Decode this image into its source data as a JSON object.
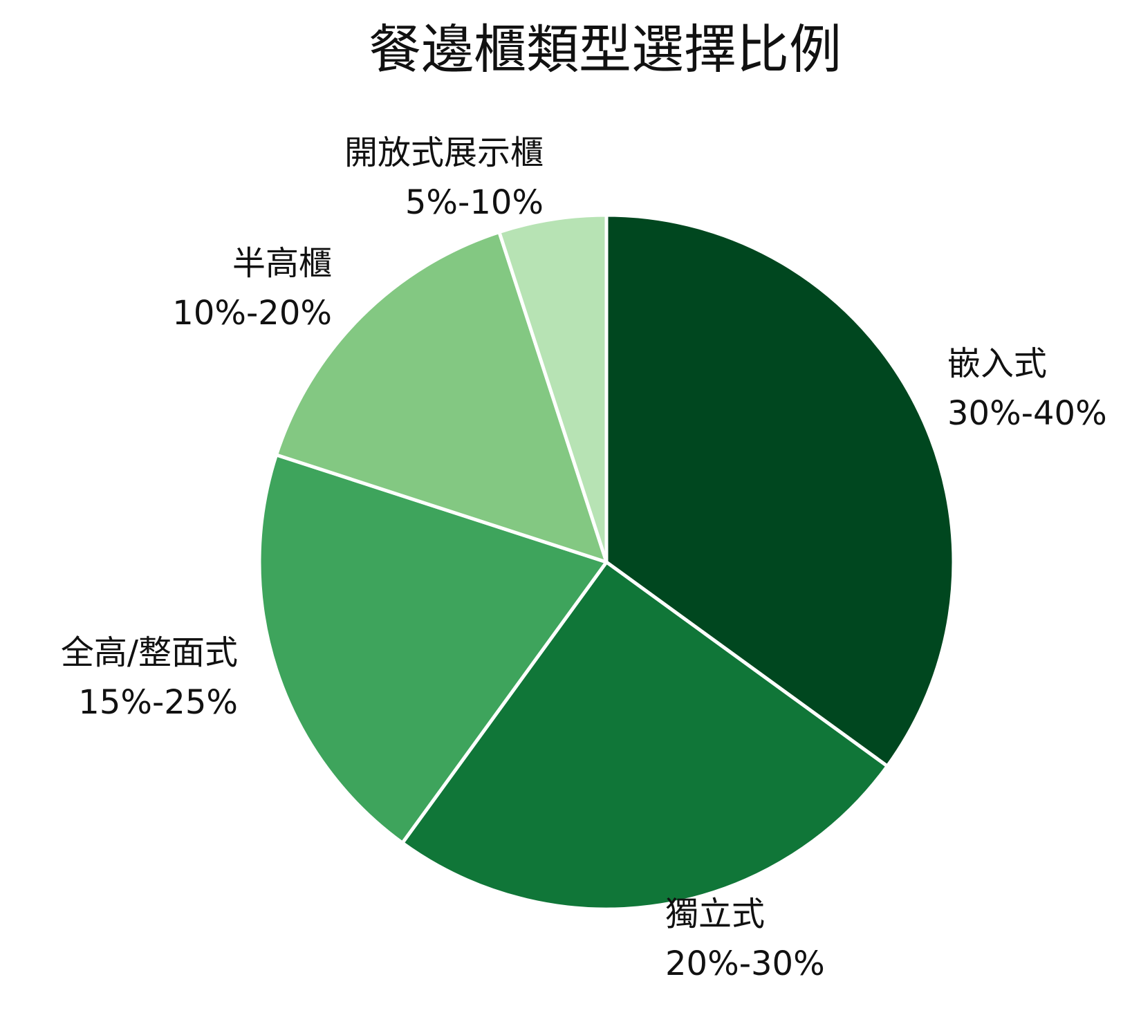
{
  "chart_data": {
    "type": "pie",
    "title": "餐邊櫃類型選擇比例",
    "start_angle": "12 o'clock",
    "direction": "clockwise",
    "slices": [
      {
        "name": "嵌入式",
        "range_label": "30%-40%",
        "value": 35,
        "color": "#00471f"
      },
      {
        "name": "獨立式",
        "range_label": "20%-30%",
        "value": 25,
        "color": "#107638"
      },
      {
        "name": "全高/整面式",
        "range_label": "15%-25%",
        "value": 20,
        "color": "#3ea45c"
      },
      {
        "name": "半高櫃",
        "range_label": "10%-20%",
        "value": 15,
        "color": "#83c882"
      },
      {
        "name": "開放式展示櫃",
        "range_label": "5%-10%",
        "value": 5,
        "color": "#b7e3b4"
      }
    ]
  }
}
